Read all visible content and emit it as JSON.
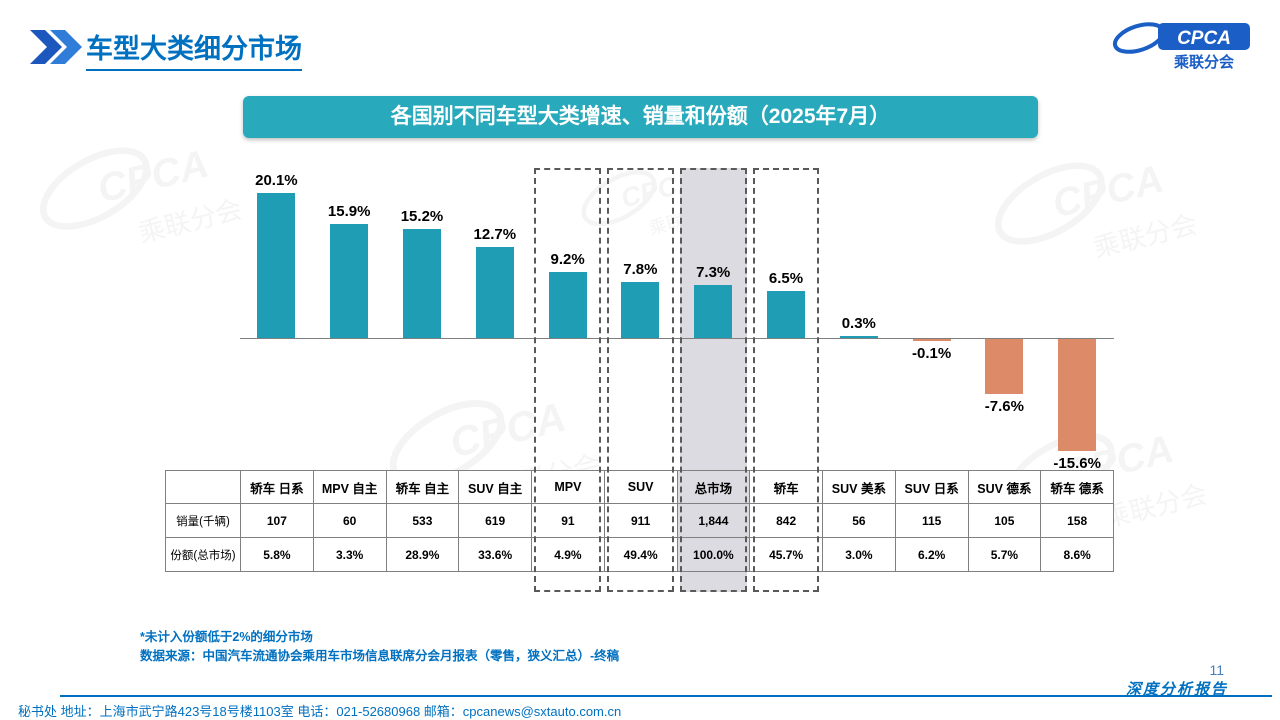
{
  "page": {
    "title": "车型大类细分市场",
    "page_number": "11",
    "report_tag": "深度分析报告",
    "footer": "秘书处  地址：上海市武宁路423号18号楼1103室 电话：021-52680968   邮箱：cpcanews@sxtauto.com.cn",
    "notes": [
      "*未计入份额低于2%的细分市场",
      "数据来源：中国汽车流通协会乘用车市场信息联席分会月报表（零售，狭义汇总）-终稿"
    ]
  },
  "logo": {
    "brand": "CPCA",
    "org": "乘联分会"
  },
  "banner": {
    "title": "各国别不同车型大类增速、销量和份额（2025年7月）"
  },
  "chart_data": {
    "type": "bar",
    "title": "各国别不同车型大类增速、销量和份额（2025年7月）",
    "categories": [
      "轿车 日系",
      "MPV 自主",
      "轿车 自主",
      "SUV 自主",
      "MPV",
      "SUV",
      "总市场",
      "轿车",
      "SUV 美系",
      "SUV 日系",
      "SUV 德系",
      "轿车 德系"
    ],
    "values": [
      20.1,
      15.9,
      15.2,
      12.7,
      9.2,
      7.8,
      7.3,
      6.5,
      0.3,
      -0.1,
      -7.6,
      -15.6
    ],
    "value_labels": [
      "20.1%",
      "15.9%",
      "15.2%",
      "12.7%",
      "9.2%",
      "7.8%",
      "7.3%",
      "6.5%",
      "0.3%",
      "-0.1%",
      "-7.6%",
      "-15.6%"
    ],
    "highlighted_category": "总市场",
    "dashed_outline_categories": [
      "MPV",
      "SUV",
      "总市场",
      "轿车"
    ],
    "positive_color": "#1E9DB5",
    "negative_color": "#DD8A68",
    "highlight_fill": "#DBDBE1",
    "xlabel": "",
    "ylabel": "",
    "ylim": [
      -16,
      21
    ],
    "grid": false
  },
  "table": {
    "row_labels": [
      "销量(千辆)",
      "份额(总市场)"
    ],
    "columns": [
      "轿车 日系",
      "MPV 自主",
      "轿车 自主",
      "SUV 自主",
      "MPV",
      "SUV",
      "总市场",
      "轿车",
      "SUV 美系",
      "SUV 日系",
      "SUV 德系",
      "轿车 德系"
    ],
    "rows": [
      [
        "107",
        "60",
        "533",
        "619",
        "91",
        "911",
        "1,844",
        "842",
        "56",
        "115",
        "105",
        "158"
      ],
      [
        "5.8%",
        "3.3%",
        "28.9%",
        "33.6%",
        "4.9%",
        "49.4%",
        "100.0%",
        "45.7%",
        "3.0%",
        "6.2%",
        "5.7%",
        "8.6%"
      ]
    ]
  },
  "watermark": {
    "brand": "CPCA",
    "org": "乘联分会"
  }
}
